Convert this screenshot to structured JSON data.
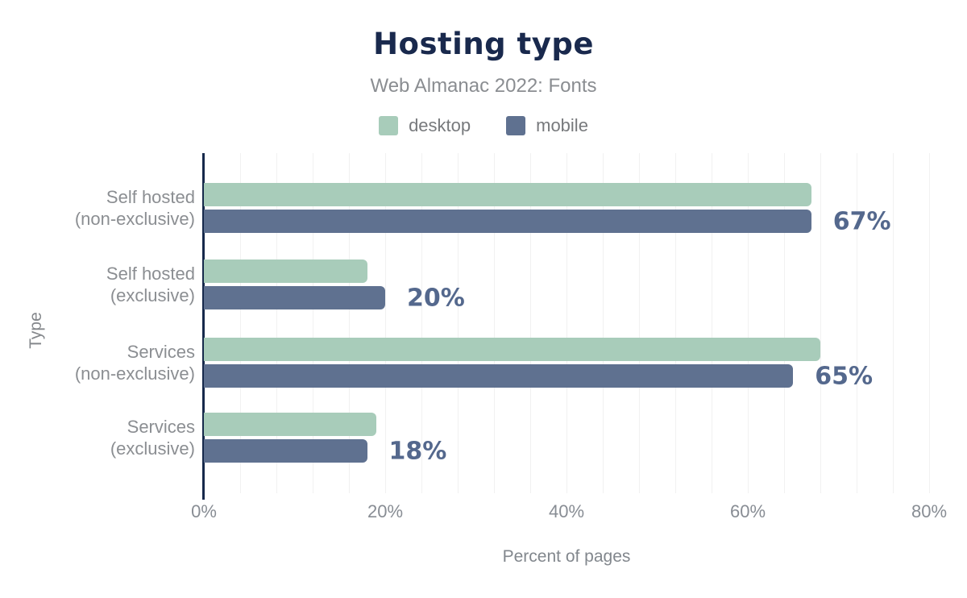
{
  "chart": {
    "title": "Hosting type",
    "subtitle": "Web Almanac 2022: Fonts",
    "legend": [
      {
        "label": "desktop",
        "color": "#a8ccba"
      },
      {
        "label": "mobile",
        "color": "#5f7190"
      }
    ],
    "x_axis": {
      "title": "Percent of pages",
      "tick_labels": [
        "0%",
        "20%",
        "40%",
        "60%",
        "80%"
      ],
      "tick_values": [
        0,
        20,
        40,
        60,
        80
      ],
      "minor_grid_step": 4,
      "max": 80
    },
    "y_axis": {
      "title": "Type"
    },
    "colors": {
      "title_text": "#19294d",
      "subtitle_text": "#8a8d91",
      "axis_line": "#16294b",
      "gridline": "#f1f1f1",
      "value_label_text": "#54688d",
      "category_text": "#8b8e92"
    }
  },
  "chart_data": {
    "type": "bar",
    "orientation": "horizontal",
    "title": "Hosting type",
    "subtitle": "Web Almanac 2022: Fonts",
    "xlabel": "Percent of pages",
    "ylabel": "Type",
    "xlim": [
      0,
      80.6
    ],
    "grid": "vertical-minor",
    "legend_position": "top",
    "categories": [
      "Self hosted (non-exclusive)",
      "Self hosted (exclusive)",
      "Services (non-exclusive)",
      "Services (exclusive)"
    ],
    "category_lines": [
      [
        "Self hosted",
        "(non-exclusive)"
      ],
      [
        "Self hosted",
        "(exclusive)"
      ],
      [
        "Services",
        "(non-exclusive)"
      ],
      [
        "Services",
        "(exclusive)"
      ]
    ],
    "series": [
      {
        "name": "desktop",
        "color": "#a8ccba",
        "values": [
          67,
          18,
          68,
          19
        ]
      },
      {
        "name": "mobile",
        "color": "#5f7190",
        "values": [
          67,
          20,
          65,
          18
        ]
      }
    ],
    "annotations": [
      "67%",
      "20%",
      "65%",
      "18%"
    ]
  }
}
